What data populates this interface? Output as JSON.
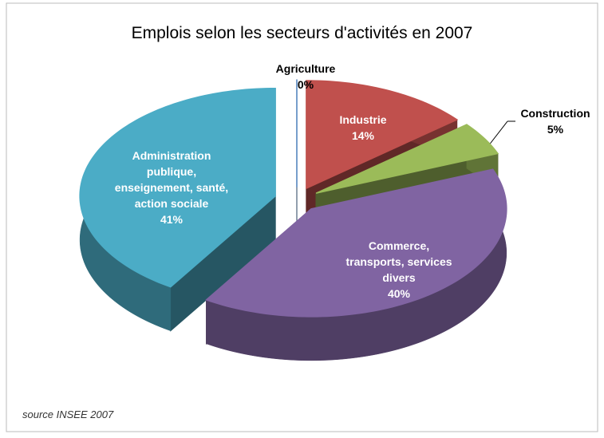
{
  "chart_data": {
    "type": "pie",
    "title": "Emplois selon les secteurs d'activités en 2007",
    "categories": [
      "Agriculture",
      "Industrie",
      "Construction",
      "Commerce, transports, services divers",
      "Administration publique, enseignement, santé, action sociale"
    ],
    "values": [
      0,
      14,
      5,
      40,
      41
    ],
    "value_labels": [
      "0%",
      "14%",
      "5%",
      "40%",
      "41%"
    ],
    "colors": [
      "#4a7ebb",
      "#c0504d",
      "#9bbb59",
      "#8064a2",
      "#4bacc6"
    ],
    "source": "source INSEE 2007"
  }
}
